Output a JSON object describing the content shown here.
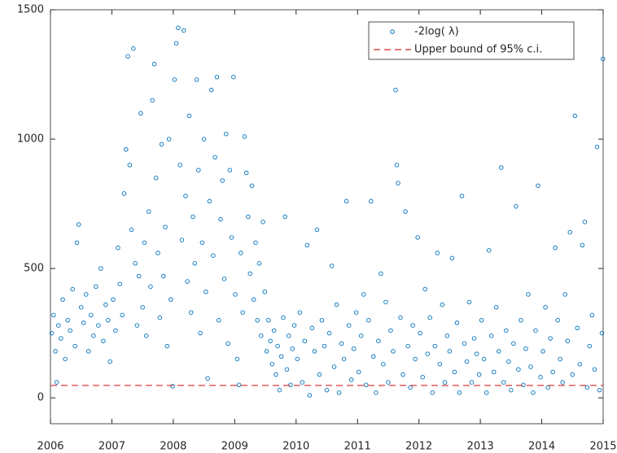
{
  "chart_data": {
    "type": "scatter",
    "xlim": [
      2006,
      2015
    ],
    "xticks": [
      2006,
      2007,
      2008,
      2009,
      2010,
      2011,
      2012,
      2013,
      2014,
      2015
    ],
    "ylim": [
      -100,
      1500
    ],
    "yticks": [
      0,
      500,
      1000,
      1500
    ],
    "grid": false,
    "legend": "upper right",
    "series": [
      {
        "name": "-2log( λ)",
        "color": "#0072bd",
        "marker": "circle",
        "x": [
          2006.02,
          2006.05,
          2006.08,
          2006.1,
          2006.13,
          2006.17,
          2006.2,
          2006.24,
          2006.28,
          2006.32,
          2006.36,
          2006.4,
          2006.43,
          2006.46,
          2006.5,
          2006.54,
          2006.58,
          2006.62,
          2006.66,
          2006.7,
          2006.74,
          2006.78,
          2006.82,
          2006.86,
          2006.9,
          2006.94,
          2006.97,
          2007.02,
          2007.06,
          2007.1,
          2007.13,
          2007.17,
          2007.2,
          2007.23,
          2007.26,
          2007.29,
          2007.32,
          2007.35,
          2007.38,
          2007.41,
          2007.44,
          2007.47,
          2007.5,
          2007.53,
          2007.56,
          2007.6,
          2007.63,
          2007.66,
          2007.69,
          2007.72,
          2007.75,
          2007.78,
          2007.81,
          2007.84,
          2007.87,
          2007.9,
          2007.93,
          2007.96,
          2007.99,
          2008.02,
          2008.05,
          2008.08,
          2008.11,
          2008.14,
          2008.17,
          2008.2,
          2008.23,
          2008.26,
          2008.29,
          2008.32,
          2008.35,
          2008.38,
          2008.41,
          2008.44,
          2008.47,
          2008.5,
          2008.53,
          2008.56,
          2008.59,
          2008.62,
          2008.65,
          2008.68,
          2008.71,
          2008.74,
          2008.77,
          2008.8,
          2008.83,
          2008.86,
          2008.89,
          2008.92,
          2008.95,
          2008.98,
          2009.01,
          2009.04,
          2009.07,
          2009.1,
          2009.13,
          2009.16,
          2009.19,
          2009.22,
          2009.25,
          2009.28,
          2009.31,
          2009.34,
          2009.37,
          2009.4,
          2009.43,
          2009.46,
          2009.49,
          2009.52,
          2009.55,
          2009.58,
          2009.61,
          2009.64,
          2009.67,
          2009.7,
          2009.73,
          2009.76,
          2009.79,
          2009.82,
          2009.85,
          2009.88,
          2009.91,
          2009.94,
          2009.97,
          2010.02,
          2010.06,
          2010.1,
          2010.14,
          2010.18,
          2010.22,
          2010.26,
          2010.3,
          2010.34,
          2010.38,
          2010.42,
          2010.46,
          2010.5,
          2010.54,
          2010.58,
          2010.62,
          2010.66,
          2010.7,
          2010.74,
          2010.78,
          2010.82,
          2010.86,
          2010.9,
          2010.94,
          2010.98,
          2011.02,
          2011.06,
          2011.1,
          2011.14,
          2011.18,
          2011.22,
          2011.26,
          2011.3,
          2011.34,
          2011.38,
          2011.42,
          2011.46,
          2011.5,
          2011.54,
          2011.58,
          2011.62,
          2011.64,
          2011.66,
          2011.7,
          2011.74,
          2011.78,
          2011.82,
          2011.86,
          2011.9,
          2011.94,
          2011.98,
          2012.02,
          2012.06,
          2012.1,
          2012.14,
          2012.18,
          2012.22,
          2012.26,
          2012.3,
          2012.34,
          2012.38,
          2012.42,
          2012.46,
          2012.5,
          2012.54,
          2012.58,
          2012.62,
          2012.66,
          2012.7,
          2012.74,
          2012.78,
          2012.82,
          2012.86,
          2012.9,
          2012.94,
          2012.98,
          2013.02,
          2013.06,
          2013.1,
          2013.14,
          2013.18,
          2013.22,
          2013.26,
          2013.3,
          2013.34,
          2013.38,
          2013.42,
          2013.46,
          2013.5,
          2013.54,
          2013.58,
          2013.62,
          2013.66,
          2013.7,
          2013.74,
          2013.78,
          2013.82,
          2013.86,
          2013.9,
          2013.94,
          2013.98,
          2014.02,
          2014.06,
          2014.1,
          2014.14,
          2014.18,
          2014.22,
          2014.26,
          2014.3,
          2014.34,
          2014.38,
          2014.42,
          2014.46,
          2014.5,
          2014.54,
          2014.58,
          2014.62,
          2014.66,
          2014.7,
          2014.74,
          2014.78,
          2014.82,
          2014.86,
          2014.9,
          2014.94,
          2014.98,
          2014.995
        ],
        "values": [
          250,
          320,
          180,
          60,
          280,
          230,
          380,
          150,
          300,
          260,
          420,
          200,
          600,
          670,
          350,
          290,
          400,
          180,
          320,
          240,
          430,
          280,
          500,
          220,
          360,
          300,
          140,
          380,
          260,
          580,
          440,
          320,
          790,
          960,
          1320,
          900,
          650,
          1350,
          520,
          280,
          470,
          1100,
          350,
          600,
          240,
          720,
          430,
          1150,
          1290,
          850,
          560,
          310,
          980,
          470,
          660,
          200,
          1000,
          380,
          45,
          1230,
          1370,
          1430,
          900,
          610,
          1420,
          780,
          450,
          1090,
          330,
          700,
          520,
          1230,
          880,
          250,
          600,
          1000,
          410,
          75,
          760,
          1190,
          550,
          930,
          1240,
          300,
          690,
          840,
          460,
          1020,
          210,
          880,
          620,
          1240,
          400,
          150,
          50,
          560,
          330,
          1010,
          870,
          700,
          480,
          820,
          380,
          600,
          300,
          520,
          240,
          680,
          410,
          180,
          300,
          220,
          130,
          260,
          90,
          200,
          30,
          160,
          310,
          700,
          110,
          240,
          50,
          190,
          280,
          150,
          330,
          60,
          220,
          590,
          10,
          270,
          180,
          650,
          90,
          300,
          200,
          30,
          250,
          510,
          120,
          360,
          20,
          210,
          150,
          760,
          280,
          70,
          190,
          330,
          100,
          240,
          400,
          50,
          300,
          760,
          160,
          20,
          220,
          480,
          130,
          370,
          60,
          260,
          180,
          1190,
          900,
          830,
          310,
          90,
          720,
          200,
          40,
          280,
          150,
          620,
          250,
          80,
          420,
          170,
          310,
          20,
          200,
          560,
          130,
          360,
          60,
          240,
          180,
          540,
          100,
          290,
          20,
          780,
          210,
          140,
          370,
          60,
          230,
          170,
          90,
          300,
          150,
          20,
          570,
          240,
          100,
          350,
          180,
          890,
          60,
          260,
          140,
          30,
          210,
          740,
          110,
          300,
          50,
          190,
          400,
          120,
          20,
          260,
          820,
          80,
          180,
          350,
          40,
          230,
          100,
          580,
          300,
          150,
          60,
          400,
          220,
          640,
          90,
          1090,
          270,
          130,
          590,
          680,
          40,
          200,
          320,
          110,
          970,
          30,
          250,
          1310
        ]
      },
      {
        "name": "Upper bound of 95% c.i.",
        "color": "#d62728",
        "marker": "dashed-line",
        "x": [
          2006,
          2015
        ],
        "values": [
          48,
          48
        ]
      }
    ]
  }
}
